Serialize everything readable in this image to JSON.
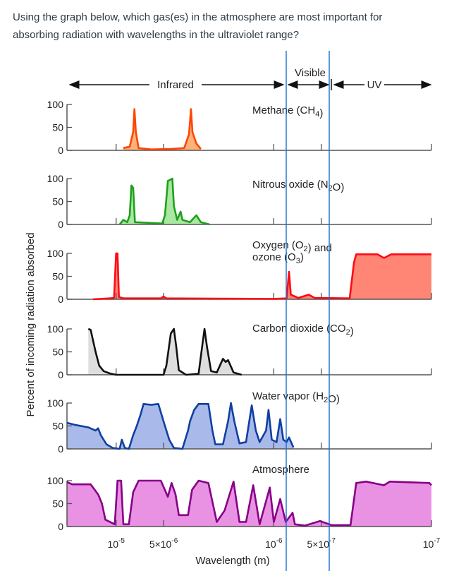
{
  "question": {
    "line1": "Using the graph below, which gas(es) in the atmosphere are most important for",
    "line2": "absorbing radiation with wavelengths in the ultraviolet range?"
  },
  "chart_data": {
    "type": "area",
    "ylabel": "Percent of incoming radiation absorbed",
    "xlabel": "Wavelength (m)",
    "x_scale": "log",
    "x_direction": "decreasing-left-to-right",
    "xlim": [
      2.05e-05,
      1e-07
    ],
    "ylim": [
      0,
      100
    ],
    "grid": false,
    "yticks": [
      "0",
      "50",
      "100"
    ],
    "xticks": [
      {
        "value": 1e-05,
        "base": "10",
        "exp": "-5"
      },
      {
        "value": 5e-06,
        "base": "5×10",
        "exp": "-6"
      },
      {
        "value": 1e-06,
        "base": "10",
        "exp": "-6"
      },
      {
        "value": 5e-07,
        "base": "5×10",
        "exp": "-7"
      },
      {
        "value": 1e-07,
        "base": "10",
        "exp": "-7"
      }
    ],
    "regions": [
      {
        "label": "Infrared",
        "from": 2.05e-05,
        "to": 7.6e-07
      },
      {
        "label": "Visible",
        "from": 7.6e-07,
        "to": 4e-07
      },
      {
        "label": "UV",
        "from": 4e-07,
        "to": 1e-07
      }
    ],
    "marker_lines_color": "#1a6fd0",
    "series": [
      {
        "name": "Methane (CH4)",
        "label": {
          "pre": "Methane (CH",
          "sub": "4",
          "post": ")"
        },
        "stroke": "#ff4500",
        "fill": "#ffb27a",
        "points": [
          [
            9e-06,
            5
          ],
          [
            8.2e-06,
            8
          ],
          [
            7.8e-06,
            40
          ],
          [
            7.65e-06,
            90
          ],
          [
            7.5e-06,
            40
          ],
          [
            7.2e-06,
            5
          ],
          [
            6e-06,
            2
          ],
          [
            4.5e-06,
            3
          ],
          [
            3.7e-06,
            5
          ],
          [
            3.45e-06,
            35
          ],
          [
            3.35e-06,
            90
          ],
          [
            3.28e-06,
            40
          ],
          [
            3.1e-06,
            15
          ],
          [
            2.9e-06,
            3
          ]
        ]
      },
      {
        "name": "Nitrous oxide (N2O)",
        "label": {
          "pre": "Nitrous oxide (N",
          "sub": "2",
          "post": "O)"
        },
        "stroke": "#1ea01e",
        "fill": "#a9e8a0",
        "points": [
          [
            9.5e-06,
            0
          ],
          [
            9e-06,
            10
          ],
          [
            8.5e-06,
            5
          ],
          [
            8.2e-06,
            20
          ],
          [
            8e-06,
            85
          ],
          [
            7.8e-06,
            80
          ],
          [
            7.6e-06,
            5
          ],
          [
            5.1e-06,
            2
          ],
          [
            4.9e-06,
            20
          ],
          [
            4.7e-06,
            95
          ],
          [
            4.5e-06,
            98
          ],
          [
            4.4e-06,
            100
          ],
          [
            4.3e-06,
            40
          ],
          [
            4.1e-06,
            10
          ],
          [
            3.9e-06,
            28
          ],
          [
            3.8e-06,
            10
          ],
          [
            3.4e-06,
            5
          ],
          [
            3.1e-06,
            20
          ],
          [
            2.9e-06,
            5
          ],
          [
            2.55e-06,
            0
          ]
        ]
      },
      {
        "name": "Oxygen (O2) and ozone (O3)",
        "label": {
          "pre": "Oxygen (O",
          "sub": "2",
          "post": ") and",
          "pre2": "ozone (O",
          "sub2": "3",
          "post2": ")"
        },
        "stroke": "#ff0a14",
        "fill": "#ff8574",
        "points": [
          [
            1.4e-05,
            0
          ],
          [
            1.1e-05,
            2
          ],
          [
            1.03e-05,
            3
          ],
          [
            1e-05,
            100
          ],
          [
            9.8e-06,
            100
          ],
          [
            9.6e-06,
            5
          ],
          [
            9e-06,
            2
          ],
          [
            5.2e-06,
            2
          ],
          [
            5e-06,
            6
          ],
          [
            4.8e-06,
            2
          ],
          [
            1e-06,
            1
          ],
          [
            8.3e-07,
            2
          ],
          [
            8e-07,
            60
          ],
          [
            7.8e-07,
            10
          ],
          [
            7e-07,
            3
          ],
          [
            6e-07,
            10
          ],
          [
            5.5e-07,
            3
          ],
          [
            3.3e-07,
            2
          ],
          [
            3.1e-07,
            80
          ],
          [
            3e-07,
            98
          ],
          [
            2.2e-07,
            98
          ],
          [
            2e-07,
            90
          ],
          [
            1.8e-07,
            98
          ],
          [
            1e-07,
            98
          ]
        ]
      },
      {
        "name": "Carbon dioxide (CO2)",
        "label": {
          "pre": "Carbon dioxide (CO",
          "sub": "2",
          "post": ")"
        },
        "stroke": "#111111",
        "fill": "#dedede",
        "points": [
          [
            1.5e-05,
            100
          ],
          [
            1.45e-05,
            98
          ],
          [
            1.35e-05,
            50
          ],
          [
            1.28e-05,
            20
          ],
          [
            1.2e-05,
            8
          ],
          [
            1.1e-05,
            3
          ],
          [
            1e-05,
            0
          ],
          [
            5e-06,
            0
          ],
          [
            4.8e-06,
            20
          ],
          [
            4.5e-06,
            90
          ],
          [
            4.3e-06,
            100
          ],
          [
            4.15e-06,
            60
          ],
          [
            4e-06,
            10
          ],
          [
            3.6e-06,
            0
          ],
          [
            3e-06,
            2
          ],
          [
            2.85e-06,
            60
          ],
          [
            2.75e-06,
            100
          ],
          [
            2.65e-06,
            60
          ],
          [
            2.5e-06,
            8
          ],
          [
            2.3e-06,
            5
          ],
          [
            2.1e-06,
            35
          ],
          [
            2.02e-06,
            28
          ],
          [
            1.95e-06,
            32
          ],
          [
            1.8e-06,
            5
          ],
          [
            1.6e-06,
            0
          ]
        ]
      },
      {
        "name": "Water vapor (H2O)",
        "label": {
          "pre": "Water vapor (H",
          "sub": "2",
          "post": "O)"
        },
        "stroke": "#1040a0",
        "fill": "#a9b9e9",
        "points": [
          [
            2.05e-05,
            57
          ],
          [
            1.8e-05,
            52
          ],
          [
            1.5e-05,
            47
          ],
          [
            1.35e-05,
            40
          ],
          [
            1.3e-05,
            45
          ],
          [
            1.25e-05,
            30
          ],
          [
            1.15e-05,
            10
          ],
          [
            1.05e-05,
            2
          ],
          [
            9.5e-06,
            0
          ],
          [
            9.2e-06,
            20
          ],
          [
            8.8e-06,
            2
          ],
          [
            8.3e-06,
            0
          ],
          [
            7.8e-06,
            30
          ],
          [
            7.4e-06,
            50
          ],
          [
            7e-06,
            75
          ],
          [
            6.7e-06,
            98
          ],
          [
            6e-06,
            96
          ],
          [
            5.4e-06,
            98
          ],
          [
            5e-06,
            60
          ],
          [
            4.6e-06,
            20
          ],
          [
            4.3e-06,
            2
          ],
          [
            3.8e-06,
            0
          ],
          [
            3.5e-06,
            40
          ],
          [
            3.4e-06,
            60
          ],
          [
            3.2e-06,
            85
          ],
          [
            3e-06,
            98
          ],
          [
            2.6e-06,
            98
          ],
          [
            2.45e-06,
            40
          ],
          [
            2.35e-06,
            10
          ],
          [
            2.1e-06,
            10
          ],
          [
            1.95e-06,
            60
          ],
          [
            1.87e-06,
            100
          ],
          [
            1.78e-06,
            60
          ],
          [
            1.65e-06,
            12
          ],
          [
            1.5e-06,
            15
          ],
          [
            1.38e-06,
            95
          ],
          [
            1.3e-06,
            40
          ],
          [
            1.23e-06,
            15
          ],
          [
            1.12e-06,
            40
          ],
          [
            1.08e-06,
            85
          ],
          [
            1.03e-06,
            20
          ],
          [
            9.6e-07,
            15
          ],
          [
            9.1e-07,
            65
          ],
          [
            8.7e-07,
            20
          ],
          [
            8.3e-07,
            15
          ],
          [
            8e-07,
            25
          ],
          [
            7.5e-07,
            3
          ]
        ]
      },
      {
        "name": "Atmosphere",
        "label": {
          "pre": "Atmosphere",
          "sub": "",
          "post": ""
        },
        "stroke": "#870087",
        "fill": "#e991e3",
        "points": [
          [
            2.05e-05,
            97
          ],
          [
            1.9e-05,
            92
          ],
          [
            1.45e-05,
            92
          ],
          [
            1.3e-05,
            70
          ],
          [
            1.23e-05,
            50
          ],
          [
            1.17e-05,
            15
          ],
          [
            1.02e-05,
            5
          ],
          [
            9.8e-06,
            100
          ],
          [
            9.3e-06,
            100
          ],
          [
            9e-06,
            5
          ],
          [
            8.3e-06,
            5
          ],
          [
            7.8e-06,
            75
          ],
          [
            7.2e-06,
            100
          ],
          [
            5.2e-06,
            100
          ],
          [
            4.7e-06,
            65
          ],
          [
            4.45e-06,
            95
          ],
          [
            4.2e-06,
            70
          ],
          [
            4e-06,
            25
          ],
          [
            3.5e-06,
            25
          ],
          [
            3.3e-06,
            80
          ],
          [
            3e-06,
            100
          ],
          [
            2.6e-06,
            95
          ],
          [
            2.3e-06,
            10
          ],
          [
            2.05e-06,
            35
          ],
          [
            1.8e-06,
            98
          ],
          [
            1.65e-06,
            10
          ],
          [
            1.5e-06,
            10
          ],
          [
            1.35e-06,
            90
          ],
          [
            1.23e-06,
            5
          ],
          [
            1.06e-06,
            85
          ],
          [
            1e-06,
            10
          ],
          [
            9.1e-07,
            60
          ],
          [
            8.4e-07,
            10
          ],
          [
            7.6e-07,
            30
          ],
          [
            7.35e-07,
            5
          ],
          [
            6.35e-07,
            2
          ],
          [
            5.1e-07,
            12
          ],
          [
            4.3e-07,
            3
          ],
          [
            3.26e-07,
            3
          ],
          [
            3e-07,
            95
          ],
          [
            2.6e-07,
            98
          ],
          [
            2e-07,
            90
          ],
          [
            1.84e-07,
            98
          ],
          [
            1.03e-07,
            95
          ],
          [
            1e-07,
            90
          ]
        ]
      }
    ]
  }
}
